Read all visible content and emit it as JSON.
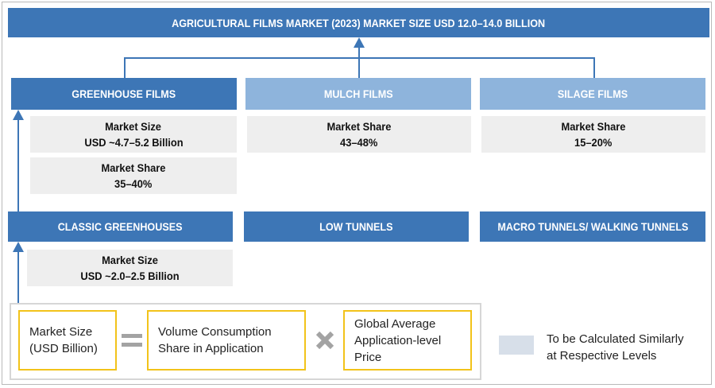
{
  "title": "AGRICULTURAL FILMS MARKET (2023) MARKET SIZE USD 12.0–14.0 BILLION",
  "segments": {
    "greenhouse": {
      "label": "GREENHOUSE FILMS",
      "market_size_label": "Market Size",
      "market_size_value": "USD ~4.7–5.2 Billion",
      "market_share_label": "Market Share",
      "market_share_value": "35–40%"
    },
    "mulch": {
      "label": "MULCH FILMS",
      "market_share_label": "Market Share",
      "market_share_value": "43–48%"
    },
    "silage": {
      "label": "SILAGE FILMS",
      "market_share_label": "Market Share",
      "market_share_value": "15–20%"
    }
  },
  "applications": {
    "classic": {
      "label": "CLASSIC GREENHOUSES",
      "market_size_label": "Market Size",
      "market_size_value": "USD ~2.0–2.5 Billion"
    },
    "low_tunnels": {
      "label": "LOW TUNNELS"
    },
    "macro_tunnels": {
      "label": "MACRO TUNNELS/ WALKING TUNNELS"
    }
  },
  "formula": {
    "term1": [
      "Market Size",
      "(USD Billion)"
    ],
    "equals_icon": "equals-icon",
    "term2": [
      "Volume Consumption",
      "Share in Application"
    ],
    "times_icon": "multiply-icon",
    "term3": [
      "Global Average",
      "Application-level",
      "Price"
    ]
  },
  "legend": {
    "text": [
      "To be Calculated Similarly",
      "at Respective Levels"
    ]
  },
  "colors": {
    "dark_blue": "#3d76b6",
    "light_blue": "#8eb4dc",
    "gray_box": "#eeeeee",
    "yellow_border": "#f2c31a",
    "legend_swatch": "#d7dfe9"
  }
}
